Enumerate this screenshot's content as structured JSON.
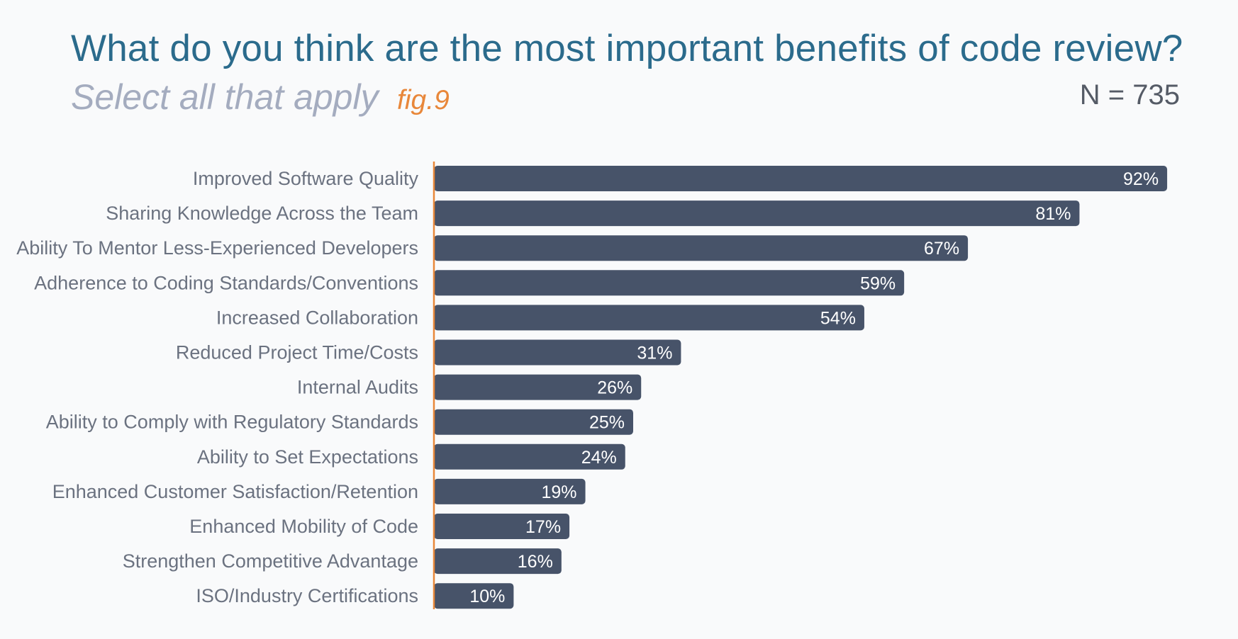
{
  "header": {
    "title": "What do you think are the most important benefits of code review?",
    "subtitle": "Select all that apply",
    "fig_label": "fig.9",
    "sample_size": "N = 735"
  },
  "colors": {
    "bar": "#475369",
    "axis": "#e8873a",
    "title": "#2b6b8c",
    "label": "#6b7280"
  },
  "chart_data": {
    "type": "bar",
    "orientation": "horizontal",
    "title": "What do you think are the most important benefits of code review?",
    "subtitle": "Select all that apply",
    "xlabel": "",
    "ylabel": "",
    "xlim": [
      0,
      100
    ],
    "grid": false,
    "value_suffix": "%",
    "categories": [
      "Improved Software Quality",
      "Sharing Knowledge Across the Team",
      "Ability To Mentor Less-Experienced Developers",
      "Adherence to Coding Standards/Conventions",
      "Increased Collaboration",
      "Reduced Project Time/Costs",
      "Internal Audits",
      "Ability to Comply with Regulatory Standards",
      "Ability to Set Expectations",
      "Enhanced Customer Satisfaction/Retention",
      "Enhanced Mobility of Code",
      "Strengthen Competitive Advantage",
      "ISO/Industry Certifications"
    ],
    "values": [
      92,
      81,
      67,
      59,
      54,
      31,
      26,
      25,
      24,
      19,
      17,
      16,
      10
    ]
  }
}
